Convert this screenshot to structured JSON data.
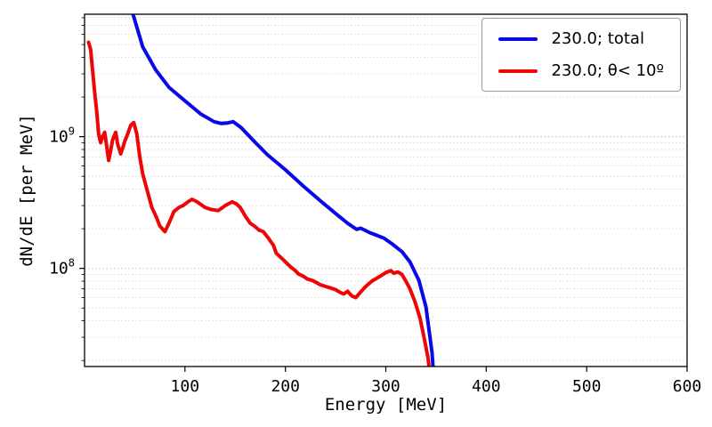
{
  "chart_data": {
    "type": "line",
    "title": "",
    "xlabel": "Energy [MeV]",
    "ylabel": "dN/dE [per MeV]",
    "xlim": [
      0,
      600
    ],
    "ylim": [
      18000000.0,
      8500000000.0
    ],
    "yscale": "log",
    "grid": "horizontal-dotted-minor-and-major",
    "legend_position": "upper right",
    "xticks": [
      100,
      200,
      300,
      400,
      500,
      600
    ],
    "yticks": [
      {
        "value": 100000000.0,
        "base": "10",
        "exp": "8"
      },
      {
        "value": 1000000000.0,
        "base": "10",
        "exp": "9"
      }
    ],
    "axis_color": "#000000",
    "grid_color": "#d0d0d0",
    "series": [
      {
        "name": "total",
        "label": "230.0; total",
        "color": "#0808e8",
        "linewidth": 4,
        "points": [
          [
            40,
            16000000000.0
          ],
          [
            48,
            8600000000.0
          ],
          [
            58,
            4800000000.0
          ],
          [
            71,
            3200000000.0
          ],
          [
            84,
            2370000000.0
          ],
          [
            100,
            1870000000.0
          ],
          [
            116,
            1480000000.0
          ],
          [
            129,
            1300000000.0
          ],
          [
            136,
            1260000000.0
          ],
          [
            142,
            1270000000.0
          ],
          [
            148,
            1300000000.0
          ],
          [
            156,
            1170000000.0
          ],
          [
            169,
            920000000.0
          ],
          [
            182,
            730000000.0
          ],
          [
            200,
            560000000.0
          ],
          [
            218,
            420000000.0
          ],
          [
            236,
            320000000.0
          ],
          [
            253,
            250000000.0
          ],
          [
            262,
            220000000.0
          ],
          [
            268,
            205000000.0
          ],
          [
            271,
            198000000.0
          ],
          [
            275,
            202000000.0
          ],
          [
            284,
            187000000.0
          ],
          [
            298,
            170000000.0
          ],
          [
            307,
            152000000.0
          ],
          [
            316,
            134000000.0
          ],
          [
            324,
            112000000.0
          ],
          [
            333,
            81000000.0
          ],
          [
            340,
            51000000.0
          ],
          [
            346,
            23000000.0
          ],
          [
            349,
            11000000.0
          ]
        ]
      },
      {
        "name": "theta-lt-10deg",
        "label": "230.0; θ< 10º",
        "color": "#ee0505",
        "linewidth": 4,
        "points": [
          [
            4,
            5200000000.0
          ],
          [
            6,
            4600000000.0
          ],
          [
            8,
            3200000000.0
          ],
          [
            10,
            2200000000.0
          ],
          [
            12,
            1600000000.0
          ],
          [
            14,
            1050000000.0
          ],
          [
            16,
            900000000.0
          ],
          [
            18,
            1000000000.0
          ],
          [
            20,
            1080000000.0
          ],
          [
            22,
            850000000.0
          ],
          [
            24,
            660000000.0
          ],
          [
            26,
            780000000.0
          ],
          [
            28,
            950000000.0
          ],
          [
            31,
            1080000000.0
          ],
          [
            33,
            880000000.0
          ],
          [
            36,
            740000000.0
          ],
          [
            38,
            820000000.0
          ],
          [
            40,
            920000000.0
          ],
          [
            43,
            1050000000.0
          ],
          [
            46,
            1220000000.0
          ],
          [
            49,
            1280000000.0
          ],
          [
            52,
            1050000000.0
          ],
          [
            55,
            700000000.0
          ],
          [
            58,
            520000000.0
          ],
          [
            62,
            400000000.0
          ],
          [
            67,
            290000000.0
          ],
          [
            71,
            250000000.0
          ],
          [
            75,
            210000000.0
          ],
          [
            80,
            190000000.0
          ],
          [
            84,
            220000000.0
          ],
          [
            89,
            270000000.0
          ],
          [
            94,
            290000000.0
          ],
          [
            98,
            300000000.0
          ],
          [
            103,
            320000000.0
          ],
          [
            107,
            335000000.0
          ],
          [
            112,
            320000000.0
          ],
          [
            116,
            305000000.0
          ],
          [
            120,
            290000000.0
          ],
          [
            126,
            280000000.0
          ],
          [
            133,
            275000000.0
          ],
          [
            140,
            300000000.0
          ],
          [
            147,
            320000000.0
          ],
          [
            151,
            310000000.0
          ],
          [
            155,
            290000000.0
          ],
          [
            160,
            250000000.0
          ],
          [
            165,
            220000000.0
          ],
          [
            169,
            210000000.0
          ],
          [
            174,
            195000000.0
          ],
          [
            178,
            190000000.0
          ],
          [
            183,
            170000000.0
          ],
          [
            188,
            150000000.0
          ],
          [
            191,
            130000000.0
          ],
          [
            196,
            120000000.0
          ],
          [
            200,
            112000000.0
          ],
          [
            205,
            103000000.0
          ],
          [
            210,
            96000000.0
          ],
          [
            213,
            91000000.0
          ],
          [
            218,
            87000000.0
          ],
          [
            222,
            83000000.0
          ],
          [
            227,
            81000000.0
          ],
          [
            231,
            78000000.0
          ],
          [
            235,
            75000000.0
          ],
          [
            240,
            73000000.0
          ],
          [
            245,
            71000000.0
          ],
          [
            250,
            69000000.0
          ],
          [
            254,
            66000000.0
          ],
          [
            258,
            64000000.0
          ],
          [
            262,
            67000000.0
          ],
          [
            266,
            62000000.0
          ],
          [
            270,
            60000000.0
          ],
          [
            274,
            65000000.0
          ],
          [
            280,
            73000000.0
          ],
          [
            286,
            80000000.0
          ],
          [
            293,
            86000000.0
          ],
          [
            300,
            93000000.0
          ],
          [
            305,
            96000000.0
          ],
          [
            308,
            92000000.0
          ],
          [
            312,
            94000000.0
          ],
          [
            316,
            90000000.0
          ],
          [
            320,
            80000000.0
          ],
          [
            324,
            70000000.0
          ],
          [
            329,
            56000000.0
          ],
          [
            334,
            42000000.0
          ],
          [
            338,
            30000000.0
          ],
          [
            342,
            21000000.0
          ],
          [
            345,
            13000000.0
          ]
        ]
      }
    ]
  }
}
